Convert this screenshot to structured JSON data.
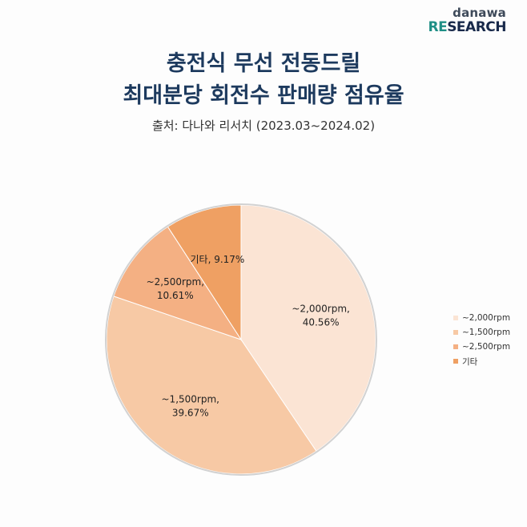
{
  "logo": {
    "top": "danawa",
    "bottom_re": "RE",
    "bottom_search": "SEARCH"
  },
  "header": {
    "title_line1": "충전식 무선 전동드릴",
    "title_line2": "최대분당 회전수 판매량 점유율",
    "source": "출처: 다나와 리서치 (2023.03~2024.02)"
  },
  "chart_data": {
    "type": "pie",
    "title": "충전식 무선 전동드릴 최대분당 회전수 판매량 점유율",
    "subtitle": "출처: 다나와 리서치 (2023.03~2024.02)",
    "categories": [
      "~2,000rpm",
      "~1,500rpm",
      "~2,500rpm",
      "기타"
    ],
    "values": [
      40.56,
      39.67,
      10.61,
      9.17
    ],
    "labels": [
      "40.56%",
      "39.67%",
      "10.61%",
      "9.17%"
    ],
    "colors": [
      "#fbe4d4",
      "#f7c9a5",
      "#f4b083",
      "#efa063"
    ],
    "legend_position": "right"
  }
}
